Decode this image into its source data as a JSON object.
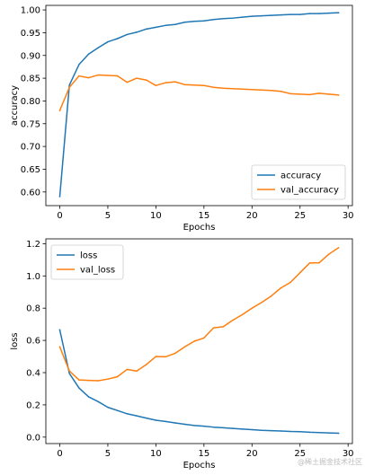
{
  "chart_data": [
    {
      "type": "line",
      "title": "",
      "xlabel": "Epochs",
      "ylabel": "accuracy",
      "xlim": [
        -1.45,
        30.45
      ],
      "ylim": [
        0.57,
        1.01
      ],
      "xticks": [
        0,
        5,
        10,
        15,
        20,
        25,
        30
      ],
      "yticks": [
        0.6,
        0.65,
        0.7,
        0.75,
        0.8,
        0.85,
        0.9,
        0.95,
        1.0
      ],
      "ytick_labels": [
        "0.60",
        "0.65",
        "0.70",
        "0.75",
        "0.80",
        "0.85",
        "0.90",
        "0.95",
        "1.00"
      ],
      "legend_position": "lower-right",
      "grid": false,
      "x": [
        0,
        1,
        2,
        3,
        4,
        5,
        6,
        7,
        8,
        9,
        10,
        11,
        12,
        13,
        14,
        15,
        16,
        17,
        18,
        19,
        20,
        21,
        22,
        23,
        24,
        25,
        26,
        27,
        28,
        29
      ],
      "series": [
        {
          "name": "accuracy",
          "color": "#1f77b4",
          "values": [
            0.59,
            0.835,
            0.88,
            0.903,
            0.917,
            0.93,
            0.937,
            0.946,
            0.951,
            0.958,
            0.962,
            0.966,
            0.968,
            0.973,
            0.975,
            0.976,
            0.979,
            0.981,
            0.982,
            0.984,
            0.986,
            0.987,
            0.988,
            0.989,
            0.99,
            0.99,
            0.992,
            0.992,
            0.993,
            0.994
          ]
        },
        {
          "name": "val_accuracy",
          "color": "#ff7f0e",
          "values": [
            0.779,
            0.83,
            0.855,
            0.851,
            0.857,
            0.856,
            0.855,
            0.841,
            0.85,
            0.846,
            0.834,
            0.84,
            0.842,
            0.836,
            0.835,
            0.834,
            0.83,
            0.828,
            0.827,
            0.826,
            0.825,
            0.824,
            0.823,
            0.821,
            0.816,
            0.815,
            0.814,
            0.817,
            0.815,
            0.813
          ]
        }
      ]
    },
    {
      "type": "line",
      "title": "",
      "xlabel": "Epochs",
      "ylabel": "loss",
      "xlim": [
        -1.45,
        30.45
      ],
      "ylim": [
        -0.04,
        1.23
      ],
      "xticks": [
        0,
        5,
        10,
        15,
        20,
        25,
        30
      ],
      "yticks": [
        0.0,
        0.2,
        0.4,
        0.6,
        0.8,
        1.0,
        1.2
      ],
      "ytick_labels": [
        "0.0",
        "0.2",
        "0.4",
        "0.6",
        "0.8",
        "1.0",
        "1.2"
      ],
      "legend_position": "upper-left",
      "grid": false,
      "x": [
        0,
        1,
        2,
        3,
        4,
        5,
        6,
        7,
        8,
        9,
        10,
        11,
        12,
        13,
        14,
        15,
        16,
        17,
        18,
        19,
        20,
        21,
        22,
        23,
        24,
        25,
        26,
        27,
        28,
        29
      ],
      "series": [
        {
          "name": "loss",
          "color": "#1f77b4",
          "values": [
            0.665,
            0.395,
            0.305,
            0.25,
            0.22,
            0.185,
            0.165,
            0.145,
            0.132,
            0.118,
            0.105,
            0.097,
            0.088,
            0.08,
            0.072,
            0.068,
            0.062,
            0.058,
            0.054,
            0.05,
            0.046,
            0.042,
            0.04,
            0.038,
            0.035,
            0.034,
            0.03,
            0.028,
            0.026,
            0.024
          ]
        },
        {
          "name": "val_loss",
          "color": "#ff7f0e",
          "values": [
            0.56,
            0.41,
            0.355,
            0.352,
            0.35,
            0.36,
            0.375,
            0.42,
            0.41,
            0.45,
            0.5,
            0.498,
            0.52,
            0.56,
            0.595,
            0.615,
            0.678,
            0.685,
            0.725,
            0.76,
            0.8,
            0.835,
            0.875,
            0.925,
            0.96,
            1.02,
            1.08,
            1.082,
            1.135,
            1.175
          ]
        }
      ]
    }
  ],
  "watermark": "@稀土掘金技术社区"
}
